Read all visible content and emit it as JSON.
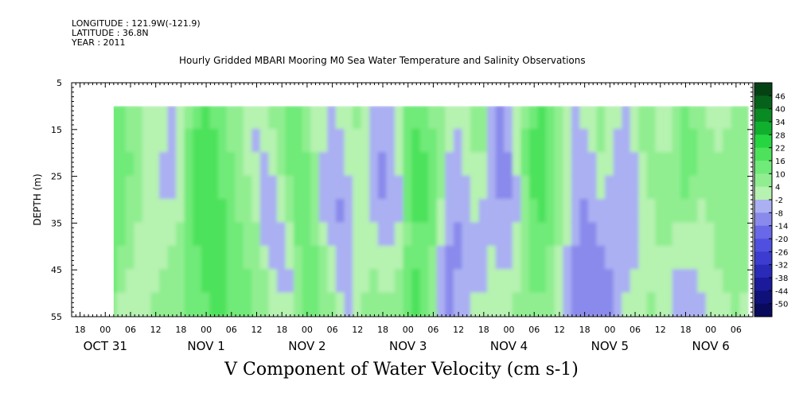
{
  "header": {
    "longitude": "LONGITUDE : 121.9W(-121.9)",
    "latitude": "LATITUDE : 36.8N",
    "year": "YEAR : 2011"
  },
  "chart_data": {
    "type": "heatmap",
    "title": "Hourly Gridded MBARI Mooring M0 Sea Water Temperature and Salinity Observations",
    "xlabel": "V Component of Water Velocity (cm s-1)",
    "ylabel": "DEPTH (m)",
    "ylim": [
      5,
      55
    ],
    "y_inverted": true,
    "y_ticks": [
      5,
      15,
      25,
      35,
      45,
      55
    ],
    "xlim": [
      "2011-10-31T16:00",
      "2011-11-06T10:00"
    ],
    "x_hour_ticks": [
      {
        "hour": 18,
        "label": "18"
      },
      {
        "hour": 24,
        "label": "00"
      },
      {
        "hour": 30,
        "label": "06"
      },
      {
        "hour": 36,
        "label": "12"
      },
      {
        "hour": 42,
        "label": "18"
      },
      {
        "hour": 48,
        "label": "00"
      },
      {
        "hour": 54,
        "label": "06"
      },
      {
        "hour": 60,
        "label": "12"
      },
      {
        "hour": 66,
        "label": "18"
      },
      {
        "hour": 72,
        "label": "00"
      },
      {
        "hour": 78,
        "label": "06"
      },
      {
        "hour": 84,
        "label": "12"
      },
      {
        "hour": 90,
        "label": "18"
      },
      {
        "hour": 96,
        "label": "00"
      },
      {
        "hour": 102,
        "label": "06"
      },
      {
        "hour": 108,
        "label": "12"
      },
      {
        "hour": 114,
        "label": "18"
      },
      {
        "hour": 120,
        "label": "00"
      },
      {
        "hour": 126,
        "label": "06"
      },
      {
        "hour": 132,
        "label": "12"
      },
      {
        "hour": 138,
        "label": "18"
      },
      {
        "hour": 144,
        "label": "00"
      },
      {
        "hour": 150,
        "label": "06"
      },
      {
        "hour": 156,
        "label": "12"
      },
      {
        "hour": 162,
        "label": "18"
      },
      {
        "hour": 168,
        "label": "00"
      },
      {
        "hour": 174,
        "label": "06"
      }
    ],
    "x_day_labels": [
      {
        "hour": 24,
        "label": "OCT 31"
      },
      {
        "hour": 48,
        "label": "NOV  1"
      },
      {
        "hour": 72,
        "label": "NOV  2"
      },
      {
        "hour": 96,
        "label": "NOV  3"
      },
      {
        "hour": 120,
        "label": "NOV  4"
      },
      {
        "hour": 144,
        "label": "NOV  5"
      },
      {
        "hour": 168,
        "label": "NOV  6"
      }
    ],
    "data_extent": {
      "hour_start": 26,
      "hour_end": 177,
      "depth_top": 10,
      "depth_bottom": 55
    },
    "colorbar": {
      "levels": [
        -50,
        -44,
        -38,
        -32,
        -26,
        -20,
        -14,
        -8,
        -2,
        4,
        10,
        16,
        22,
        28,
        34,
        40,
        46
      ],
      "labels": [
        "46",
        "40",
        "34",
        "28",
        "22",
        "16",
        "10",
        "4",
        "-2",
        "-8",
        "-14",
        "-20",
        "-26",
        "-32",
        "-38",
        "-44",
        "-50"
      ],
      "colors": [
        "#0a0a5c",
        "#10107a",
        "#1a1a9a",
        "#2a2ab8",
        "#3c3cd0",
        "#5050e0",
        "#6868e8",
        "#8a8aec",
        "#aab0f2",
        "#b6f2b0",
        "#90ee90",
        "#70ea78",
        "#4ee25c",
        "#26d640",
        "#10b02e",
        "#0a8a22",
        "#06621a",
        "#044214"
      ]
    },
    "band_hours": [
      26,
      28,
      30,
      32,
      34,
      36,
      38,
      40,
      42,
      44,
      46,
      48,
      50,
      52,
      54,
      56,
      58,
      60,
      62,
      64,
      66,
      68,
      70,
      72,
      74,
      76,
      78,
      80,
      82,
      84,
      86,
      88,
      90,
      92,
      94,
      96,
      98,
      100,
      102,
      104,
      106,
      108,
      110,
      112,
      114,
      116,
      118,
      120,
      122,
      124,
      126,
      128,
      130,
      132,
      134,
      136,
      138,
      140,
      142,
      144,
      146,
      148,
      150,
      152,
      154,
      156,
      158,
      160,
      162,
      164,
      166,
      168,
      170,
      172,
      174,
      176
    ],
    "band_depths": [
      12.5,
      17.5,
      22.5,
      27.5,
      32.5,
      37.5,
      42.5,
      47.5,
      52.5
    ],
    "values": [
      [
        14,
        15,
        15,
        14,
        13,
        13,
        12,
        10,
        8
      ],
      [
        12,
        14,
        14,
        13,
        12,
        11,
        9,
        6,
        3
      ],
      [
        7,
        9,
        10,
        9,
        8,
        7,
        5,
        2,
        -2
      ],
      [
        4,
        5,
        6,
        5,
        4,
        3,
        2,
        1,
        -1
      ],
      [
        3,
        3,
        2,
        2,
        2,
        1,
        1,
        0,
        1
      ],
      [
        2,
        2,
        1,
        0,
        0,
        1,
        2,
        3,
        4
      ],
      [
        0,
        -2,
        -3,
        -3,
        -2,
        1,
        3,
        4,
        6
      ],
      [
        -4,
        -5,
        -5,
        -4,
        -2,
        2,
        5,
        6,
        8
      ],
      [
        -2,
        -1,
        1,
        2,
        3,
        4,
        6,
        7,
        8
      ],
      [
        9,
        11,
        12,
        13,
        13,
        13,
        12,
        11,
        10
      ],
      [
        15,
        17,
        18,
        18,
        17,
        16,
        15,
        14,
        13
      ],
      [
        16,
        18,
        19,
        19,
        19,
        18,
        17,
        16,
        15
      ],
      [
        14,
        16,
        17,
        18,
        18,
        17,
        17,
        16,
        16
      ],
      [
        10,
        12,
        14,
        15,
        16,
        16,
        16,
        16,
        17
      ],
      [
        8,
        9,
        11,
        12,
        13,
        14,
        14,
        14,
        15
      ],
      [
        4,
        5,
        7,
        8,
        9,
        10,
        11,
        11,
        12
      ],
      [
        2,
        1,
        2,
        4,
        6,
        8,
        9,
        10,
        10
      ],
      [
        -1,
        -3,
        -2,
        -2,
        1,
        4,
        6,
        8,
        8
      ],
      [
        1,
        -1,
        -4,
        -5,
        -5,
        -3,
        1,
        4,
        5
      ],
      [
        4,
        2,
        -1,
        -3,
        -6,
        -6,
        -3,
        1,
        3
      ],
      [
        8,
        7,
        5,
        2,
        -2,
        -5,
        -6,
        -3,
        1
      ],
      [
        12,
        12,
        11,
        9,
        6,
        3,
        -1,
        -3,
        -2
      ],
      [
        11,
        13,
        13,
        13,
        12,
        11,
        9,
        6,
        4
      ],
      [
        7,
        9,
        10,
        11,
        12,
        12,
        12,
        11,
        10
      ],
      [
        2,
        3,
        4,
        5,
        7,
        9,
        10,
        11,
        11
      ],
      [
        -1,
        -2,
        -3,
        -4,
        -3,
        2,
        5,
        8,
        9
      ],
      [
        -3,
        -5,
        -6,
        -8,
        -8,
        -6,
        -2,
        2,
        4
      ],
      [
        -2,
        -4,
        -5,
        -7,
        -9,
        -8,
        -6,
        -4,
        -2
      ],
      [
        1,
        -1,
        -2,
        -3,
        -5,
        -6,
        -5,
        -4,
        -3
      ],
      [
        4,
        3,
        2,
        1,
        -1,
        -2,
        -2,
        -1,
        2
      ],
      [
        2,
        1,
        -1,
        -2,
        -2,
        -1,
        1,
        3,
        5
      ],
      [
        -3,
        -5,
        -6,
        -5,
        -3,
        -1,
        2,
        5,
        7
      ],
      [
        -5,
        -8,
        -9,
        -9,
        -7,
        -4,
        0,
        3,
        6
      ],
      [
        -3,
        -6,
        -8,
        -8,
        -7,
        -5,
        -2,
        2,
        5
      ],
      [
        3,
        2,
        -1,
        -3,
        -3,
        -2,
        1,
        5,
        9
      ],
      [
        10,
        12,
        12,
        11,
        10,
        9,
        10,
        12,
        14
      ],
      [
        14,
        16,
        17,
        17,
        16,
        15,
        15,
        16,
        17
      ],
      [
        13,
        15,
        16,
        16,
        16,
        15,
        14,
        14,
        13
      ],
      [
        9,
        11,
        12,
        12,
        12,
        10,
        8,
        6,
        4
      ],
      [
        4,
        5,
        5,
        4,
        2,
        -1,
        -4,
        -6,
        -7
      ],
      [
        0,
        -1,
        -3,
        -5,
        -7,
        -8,
        -9,
        -9,
        -9
      ],
      [
        -2,
        -3,
        -5,
        -7,
        -8,
        -9,
        -9,
        -8,
        -7
      ],
      [
        1,
        0,
        -2,
        -4,
        -6,
        -7,
        -7,
        -6,
        -5
      ],
      [
        6,
        5,
        3,
        1,
        -1,
        -3,
        -4,
        -4,
        -2
      ],
      [
        6,
        4,
        1,
        -2,
        -4,
        -5,
        -5,
        -3,
        0
      ],
      [
        -4,
        -7,
        -8,
        -8,
        -6,
        -4,
        -2,
        1,
        3
      ],
      [
        -9,
        -12,
        -11,
        -10,
        -8,
        -6,
        -3,
        0,
        2
      ],
      [
        -4,
        -8,
        -9,
        -9,
        -8,
        -6,
        -3,
        0,
        3
      ],
      [
        2,
        0,
        -2,
        -3,
        -3,
        -2,
        1,
        3,
        6
      ],
      [
        9,
        10,
        10,
        9,
        8,
        7,
        6,
        7,
        8
      ],
      [
        14,
        16,
        17,
        16,
        15,
        13,
        11,
        10,
        9
      ],
      [
        16,
        18,
        19,
        18,
        16,
        14,
        12,
        10,
        8
      ],
      [
        12,
        14,
        15,
        14,
        12,
        10,
        8,
        6,
        4
      ],
      [
        6,
        8,
        9,
        8,
        6,
        4,
        2,
        0,
        -2
      ],
      [
        0,
        1,
        2,
        2,
        1,
        -1,
        -3,
        -5,
        -6
      ],
      [
        -4,
        -4,
        -4,
        -5,
        -6,
        -8,
        -9,
        -10,
        -10
      ],
      [
        -2,
        -4,
        -6,
        -8,
        -10,
        -11,
        -12,
        -12,
        -11
      ],
      [
        2,
        0,
        -3,
        -6,
        -8,
        -10,
        -11,
        -12,
        -12
      ],
      [
        5,
        4,
        1,
        -2,
        -5,
        -7,
        -9,
        -10,
        -11
      ],
      [
        3,
        1,
        -1,
        -3,
        -5,
        -7,
        -8,
        -9,
        -9
      ],
      [
        -1,
        -3,
        -5,
        -6,
        -7,
        -7,
        -7,
        -6,
        -5
      ],
      [
        -3,
        -5,
        -7,
        -8,
        -8,
        -7,
        -5,
        -3,
        -1
      ],
      [
        1,
        -1,
        -3,
        -5,
        -6,
        -6,
        -4,
        -2,
        1
      ],
      [
        6,
        5,
        3,
        1,
        -1,
        -2,
        -1,
        1,
        3
      ],
      [
        5,
        6,
        6,
        5,
        3,
        2,
        2,
        3,
        4
      ],
      [
        1,
        2,
        4,
        5,
        5,
        4,
        3,
        3,
        3
      ],
      [
        2,
        3,
        4,
        5,
        5,
        4,
        3,
        1,
        -1
      ],
      [
        8,
        9,
        9,
        8,
        6,
        3,
        0,
        -3,
        -5
      ],
      [
        11,
        12,
        12,
        10,
        7,
        3,
        -1,
        -4,
        -6
      ],
      [
        9,
        10,
        10,
        8,
        5,
        2,
        -1,
        -3,
        -5
      ],
      [
        5,
        6,
        6,
        5,
        3,
        1,
        -1,
        -2,
        -3
      ],
      [
        3,
        4,
        5,
        5,
        4,
        3,
        2,
        1,
        0
      ],
      [
        2,
        3,
        4,
        5,
        5,
        5,
        4,
        3,
        2
      ],
      [
        3,
        4,
        5,
        6,
        6,
        6,
        5,
        4,
        3
      ],
      [
        4,
        5,
        6,
        7,
        7,
        7,
        6,
        5,
        4
      ],
      [
        4,
        5,
        6,
        6,
        6,
        6,
        5,
        4,
        3
      ]
    ]
  }
}
